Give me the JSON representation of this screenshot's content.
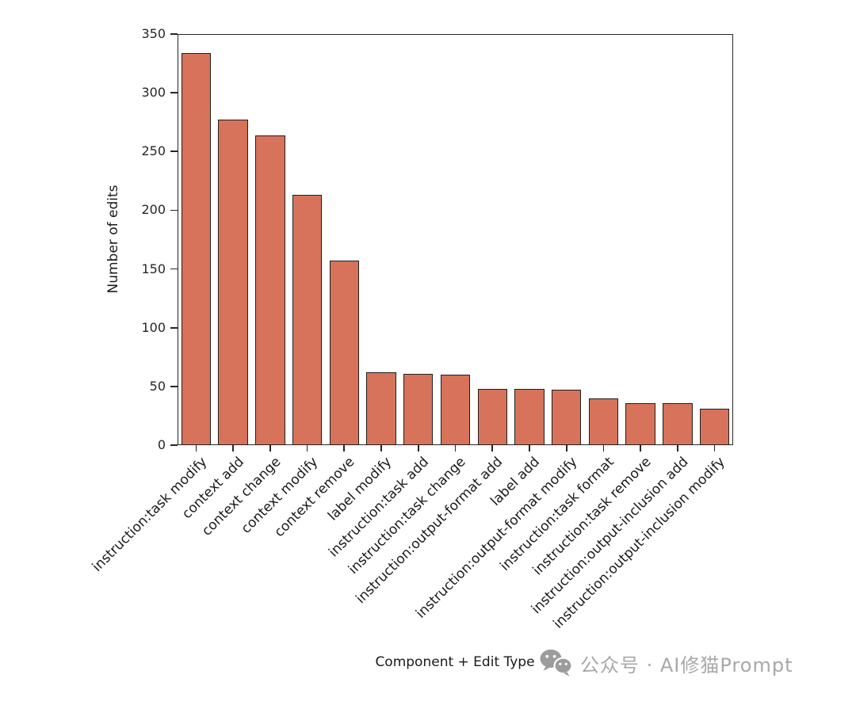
{
  "chart_data": {
    "type": "bar",
    "title": "",
    "xlabel": "Component + Edit Type",
    "ylabel": "Number of edits",
    "categories": [
      "instruction:task modify",
      "context add",
      "context change",
      "context modify",
      "context remove",
      "label modify",
      "instruction:task add",
      "instruction:task change",
      "instruction:output-format add",
      "label add",
      "instruction:output-format modify",
      "instruction:task format",
      "instruction:task remove",
      "instruction:output-inclusion add",
      "instruction:output-inclusion modify"
    ],
    "values": [
      334,
      277,
      264,
      213,
      157,
      62,
      61,
      60,
      48,
      48,
      47,
      40,
      36,
      36,
      31
    ],
    "ylim": [
      0,
      350
    ],
    "yticks": [
      0,
      50,
      100,
      150,
      200,
      250,
      300,
      350
    ],
    "grid": false,
    "legend_position": "none",
    "bar_color": "#d7735a",
    "bar_edge_color": "#1f1f1f",
    "spine_color": "#262626"
  },
  "watermark": {
    "icon": "wechat-icon",
    "text": "公众号 · AI修猫Prompt",
    "color": "#a8a8a8"
  }
}
